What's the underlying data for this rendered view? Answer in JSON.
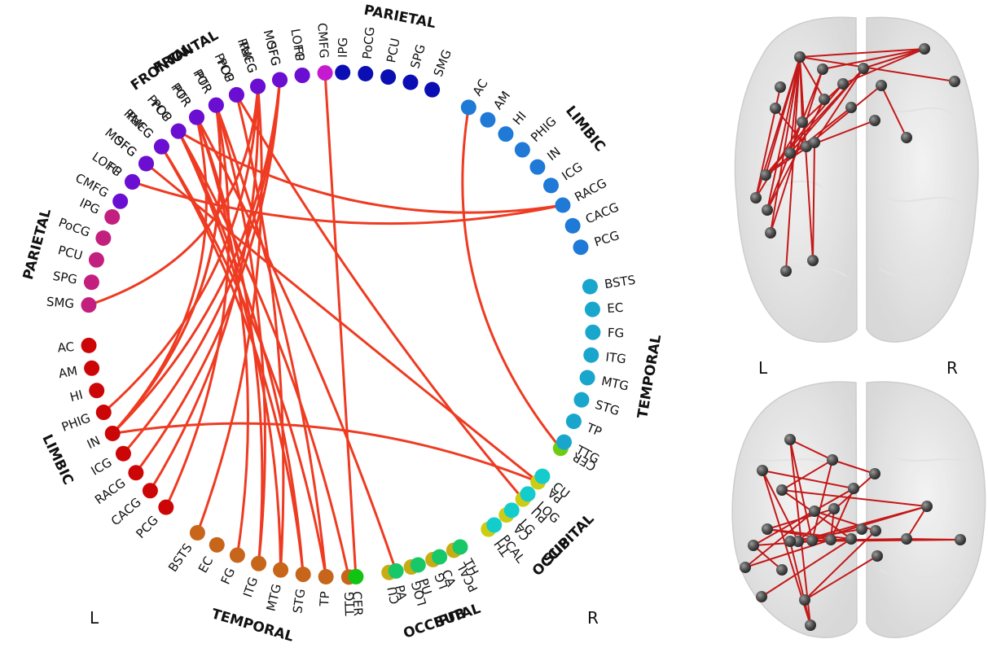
{
  "circle": {
    "groups": [
      {
        "key": "L-FRONTAL",
        "lobe": "FRONTAL",
        "color": "#c41bd1",
        "nodes": [
          "CMFG",
          "LOFG",
          "MOFG",
          "PaCG",
          "POP",
          "POR",
          "PTR",
          "PrCG",
          "RMFG",
          "SFG",
          "FP"
        ]
      },
      {
        "key": "L-PARIETAL",
        "lobe": "PARIETAL",
        "color": "#c21f7e",
        "nodes": [
          "IPG",
          "PoCG",
          "PCU",
          "SPG",
          "SMG"
        ]
      },
      {
        "key": "L-LIMBIC",
        "lobe": "LIMBIC",
        "color": "#cc0606",
        "nodes": [
          "AC",
          "AM",
          "HI",
          "PHIG",
          "IN",
          "ICG",
          "RACG",
          "CACG",
          "PCG"
        ]
      },
      {
        "key": "L-TEMPORAL",
        "lobe": "TEMPORAL",
        "color": "#c7651a",
        "nodes": [
          "BSTS",
          "EC",
          "FG",
          "ITG",
          "MTG",
          "STG",
          "TP",
          "TTG"
        ]
      },
      {
        "key": "L-OCCIPITAL",
        "lobe": "OCCIPITAL",
        "color": "#c8ac14",
        "nodes": [
          "CU",
          "LOG",
          "LG",
          "PCAL"
        ]
      },
      {
        "key": "L-SUB",
        "lobe": "SUB",
        "color": "#cccc12",
        "nodes": [
          "TH",
          "CA",
          "PU",
          "PA"
        ]
      },
      {
        "key": "L-CER",
        "lobe": "",
        "color": "#6ccc12",
        "nodes": [
          "CER"
        ]
      },
      {
        "key": "R-CER",
        "lobe": "",
        "color": "#11c411",
        "nodes": [
          "CER"
        ]
      },
      {
        "key": "R-SUB",
        "lobe": "SUB",
        "color": "#17c768",
        "nodes": [
          "PA",
          "PU",
          "CA",
          "TH"
        ]
      },
      {
        "key": "R-OCCIPITAL",
        "lobe": "OCCIPITAL",
        "color": "#14cccc",
        "nodes": [
          "PCAL",
          "LG",
          "LOG",
          "CU"
        ]
      },
      {
        "key": "R-TEMPORAL",
        "lobe": "TEMPORAL",
        "color": "#19a6cc",
        "nodes": [
          "TTG",
          "TP",
          "STG",
          "MTG",
          "ITG",
          "FG",
          "EC",
          "BSTS"
        ]
      },
      {
        "key": "R-LIMBIC",
        "lobe": "LIMBIC",
        "color": "#1f79d6",
        "nodes": [
          "PCG",
          "CACG",
          "RACG",
          "ICG",
          "IN",
          "PHIG",
          "HI",
          "AM",
          "AC"
        ]
      },
      {
        "key": "R-PARIETAL",
        "lobe": "PARIETAL",
        "color": "#0a0eb3",
        "nodes": [
          "SMG",
          "SPG",
          "PCU",
          "PoCG",
          "IPG"
        ]
      },
      {
        "key": "R-FRONTAL",
        "lobe": "FRONTAL",
        "color": "#6a0fd1",
        "nodes": [
          "FP",
          "SFG",
          "RMFG",
          "PrCG",
          "PTR",
          "POR",
          "POP",
          "PaCG",
          "MOFG",
          "LOFG",
          "CMFG"
        ]
      }
    ],
    "side_left": "L",
    "side_right": "R",
    "edge_color": "#ee3b22",
    "edges": [
      [
        "L-FRONTAL.CMFG",
        "R-CER.CER"
      ],
      [
        "L-FRONTAL.PTR",
        "R-SUB.PA"
      ],
      [
        "L-FRONTAL.PrCG",
        "R-LIMBIC.RACG"
      ],
      [
        "L-FRONTAL.FP",
        "R-LIMBIC.RACG"
      ],
      [
        "L-FRONTAL.POR",
        "L-TEMPORAL.TP"
      ],
      [
        "L-FRONTAL.PrCG",
        "L-TEMPORAL.MTG"
      ],
      [
        "L-FRONTAL.RMFG",
        "L-TEMPORAL.STG"
      ],
      [
        "L-FRONTAL.PTR",
        "L-TEMPORAL.ITG"
      ],
      [
        "L-FRONTAL.SFG",
        "L-SUB.PA"
      ],
      [
        "L-FRONTAL.POP",
        "L-SUB.PU"
      ],
      [
        "L-FRONTAL.RMFG",
        "L-TEMPORAL.TP"
      ],
      [
        "L-PARIETAL.SMG",
        "R-FRONTAL.RMFG"
      ],
      [
        "L-LIMBIC.IN",
        "R-FRONTAL.PTR"
      ],
      [
        "L-LIMBIC.IN",
        "R-FRONTAL.SFG"
      ],
      [
        "L-LIMBIC.PHIG",
        "R-FRONTAL.RMFG"
      ],
      [
        "L-LIMBIC.ICG",
        "R-FRONTAL.SFG"
      ],
      [
        "L-LIMBIC.RACG",
        "R-FRONTAL.SFG"
      ],
      [
        "L-LIMBIC.CACG",
        "R-FRONTAL.RMFG"
      ],
      [
        "L-TEMPORAL.BSTS",
        "R-FRONTAL.RMFG"
      ],
      [
        "L-LIMBIC.PCG",
        "R-FRONTAL.PTR"
      ],
      [
        "L-LIMBIC.IN",
        "L-FRONTAL.PTR"
      ],
      [
        "L-LIMBIC.IN",
        "L-FRONTAL.POR"
      ],
      [
        "L-LIMBIC.IN",
        "L-SUB.PA"
      ],
      [
        "L-TEMPORAL.ITG",
        "R-FRONTAL.PTR"
      ],
      [
        "L-TEMPORAL.MTG",
        "R-FRONTAL.PrCG"
      ],
      [
        "L-TEMPORAL.STG",
        "L-FRONTAL.PrCG"
      ],
      [
        "L-TEMPORAL.FG",
        "L-FRONTAL.PTR"
      ],
      [
        "L-TEMPORAL.TTG",
        "L-FRONTAL.PrCG"
      ],
      [
        "R-LIMBIC.AC",
        "L-CER.CER"
      ]
    ]
  },
  "brain_views": {
    "label_left": "L",
    "label_right": "R"
  }
}
